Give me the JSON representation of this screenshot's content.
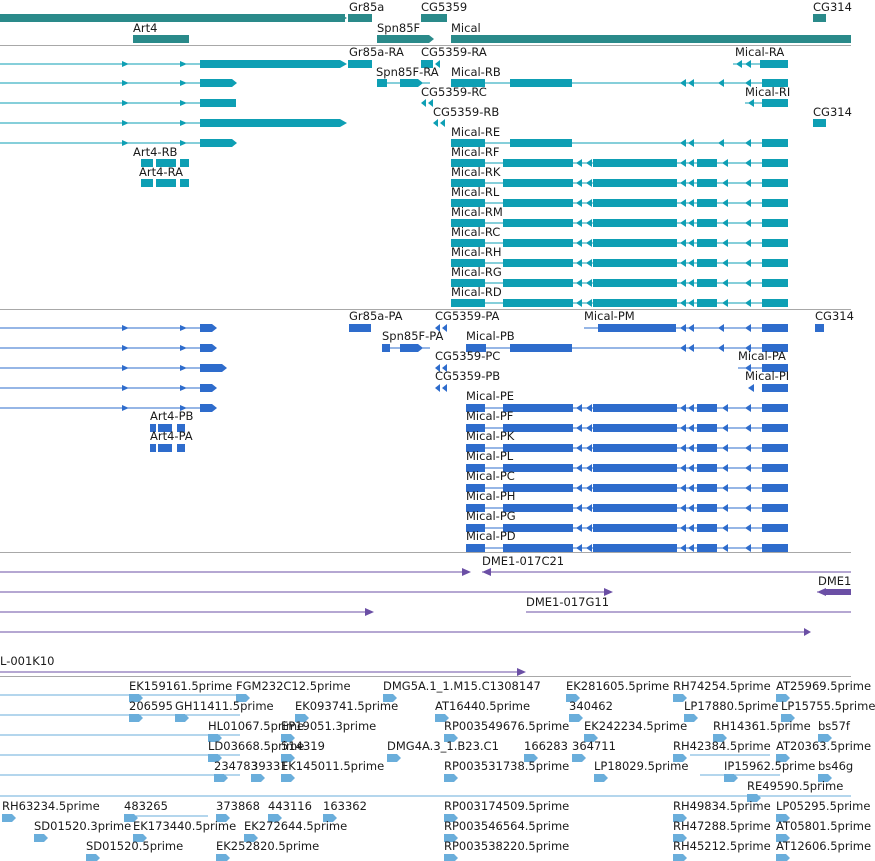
{
  "colors": {
    "gene": "#2a8a8a",
    "transcript": "#0e9fb4",
    "protein": "#2e6ccc",
    "clone": "#6b4fa5",
    "est": "#6aaedb",
    "divider": "#a8a8a8"
  },
  "gene_track": {
    "labels": [
      "Gr85a",
      "CG5359",
      "CG314",
      "Art4",
      "Spn85F",
      "Mical"
    ]
  },
  "transcript_track": {
    "labels": [
      "Gr85a-RA",
      "CG5359-RA",
      "Mical-RA",
      "Spn85F-RA",
      "Mical-RB",
      "CG5359-RC",
      "Mical-RI",
      "CG5359-RB",
      "CG314",
      "Mical-RE",
      "Art4-RB",
      "Mical-RF",
      "Art4-RA",
      "Mical-RK",
      "Mical-RL",
      "Mical-RM",
      "Mical-RC",
      "Mical-RH",
      "Mical-RG",
      "Mical-RD"
    ]
  },
  "protein_track": {
    "labels": [
      "Gr85a-PA",
      "CG5359-PA",
      "Mical-PM",
      "CG314",
      "Spn85F-PA",
      "Mical-PB",
      "CG5359-PC",
      "Mical-PA",
      "CG5359-PB",
      "Mical-PI",
      "Mical-PE",
      "Art4-PB",
      "Mical-PF",
      "Art4-PA",
      "Mical-PK",
      "Mical-PL",
      "Mical-PC",
      "Mical-PH",
      "Mical-PG",
      "Mical-PD"
    ]
  },
  "clone_track": {
    "labels": [
      "DME1-017C21",
      "DME1",
      "DME1-017G11",
      "L-001K10"
    ]
  },
  "est_track": {
    "labels": [
      "EK159161.5prime",
      "FGM232C12.5prime",
      "DMG5A.1_1.M15.C1308147",
      "EK281605.5prime",
      "RH74254.5prime",
      "AT25969.5prime",
      "206595",
      "GH11411.5prime",
      "EK093741.5prime",
      "AT16440.5prime",
      "340462",
      "LP17880.5prime",
      "LP15755.5prime",
      "HL01067.5prime",
      "EP19051.3prime",
      "RP003549676.5prime",
      "EK242234.5prime",
      "RH14361.5prime",
      "bs57f",
      "LD03668.5prime",
      "514319",
      "DMG4A.3_1.B23.C1",
      "166283",
      "364711",
      "RH42384.5prime",
      "AT20363.5prime",
      "234783",
      "39331",
      "EK145011.5prime",
      "RP003531738.5prime",
      "LP18029.5prime",
      "IP15962.5prime",
      "bs46g",
      "RE49590.5prime",
      "RH63234.5prime",
      "483265",
      "373868",
      "443116",
      "163362",
      "RP003174509.5prime",
      "RH49834.5prime",
      "LP05295.5prime",
      "SD01520.3prime",
      "EK173440.5prime",
      "EK272644.5prime",
      "RP003546564.5prime",
      "RH47288.5prime",
      "AT05801.5prime",
      "SD01520.5prime",
      "EK252820.5prime",
      "RP003538220.5prime",
      "RH45212.5prime",
      "AT12606.5prime"
    ]
  }
}
